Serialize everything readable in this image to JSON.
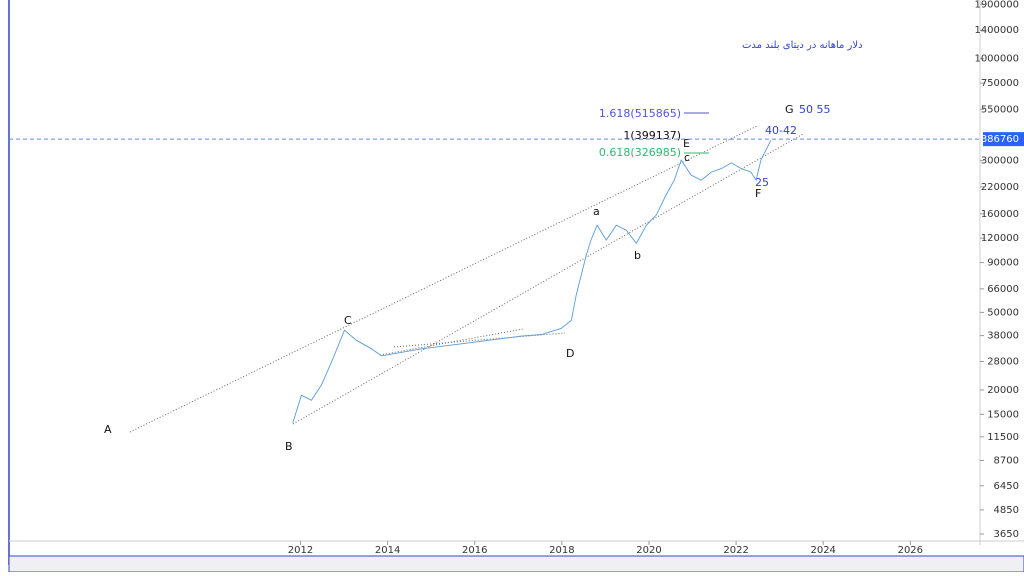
{
  "chart_data": {
    "type": "line",
    "title": "دلار ماهانه  در دیتای بلند مدت",
    "log_scale": true,
    "xlim": [
      2005.1,
      2027.6
    ],
    "xticks": [
      2012,
      2014,
      2016,
      2018,
      2020,
      2022,
      2024,
      2026
    ],
    "ylim": [
      3400,
      2000000
    ],
    "yticks": [
      3650,
      4850,
      6450,
      8700,
      11500,
      15000,
      20000,
      28000,
      38000,
      50000,
      66000,
      90000,
      120000,
      160000,
      220000,
      300000,
      550000,
      750000,
      1000000,
      1400000,
      1900000
    ],
    "last_price": 386760,
    "series": [
      {
        "color": "#5b9bd5",
        "x": [
          2011.82,
          2012.02,
          2012.25,
          2012.48,
          2012.71,
          2013.01,
          2013.28,
          2013.63,
          2013.86,
          2014.78,
          2015.92,
          2017.07,
          2017.53,
          2017.99,
          2018.22,
          2018.33,
          2018.56,
          2018.67,
          2018.81,
          2019.02,
          2019.25,
          2019.48,
          2019.71,
          2019.94,
          2020.17,
          2020.39,
          2020.58,
          2020.74,
          2020.97,
          2021.2,
          2021.43,
          2021.66,
          2021.89,
          2022.12,
          2022.34,
          2022.46,
          2022.57,
          2022.8
        ],
        "values": [
          13500,
          18800,
          17700,
          21200,
          27800,
          40500,
          36000,
          32500,
          29900,
          32500,
          35000,
          37800,
          38500,
          41400,
          45600,
          61300,
          98400,
          117500,
          140000,
          117500,
          140000,
          132000,
          113000,
          140000,
          158000,
          200000,
          238000,
          302000,
          253000,
          238000,
          262000,
          273000,
          292000,
          273000,
          262000,
          238000,
          302000,
          382000
        ]
      }
    ],
    "annotations": [
      "A",
      "B",
      "C",
      "D",
      "E",
      "F",
      "G",
      "a",
      "b",
      "c",
      "25",
      "40-42",
      "50 55",
      "1.618(515865)",
      "1(399137)",
      "0.618(326985)"
    ]
  }
}
